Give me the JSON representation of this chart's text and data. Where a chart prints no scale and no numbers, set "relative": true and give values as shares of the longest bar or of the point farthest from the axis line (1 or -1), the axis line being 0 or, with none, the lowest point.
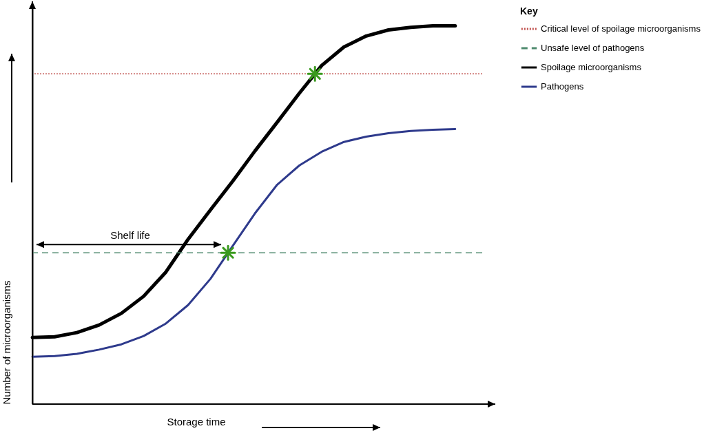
{
  "chart_data": {
    "type": "line",
    "xlabel": "Storage time",
    "ylabel": "Number of microorganisms",
    "legend_title": "Key",
    "relative": true,
    "legend": "right",
    "line_style": "solid",
    "categories": [
      null,
      null,
      null,
      null,
      null,
      null,
      null,
      null,
      null,
      null,
      null,
      null,
      null,
      null,
      null,
      null,
      null,
      null,
      null,
      null
    ],
    "series": [
      {
        "name": "Spoilage microorganisms",
        "color": "#000000",
        "values": [
          0.176,
          0.178,
          0.189,
          0.209,
          0.24,
          0.285,
          0.349,
          0.436,
          0.513,
          0.589,
          0.669,
          0.745,
          0.822,
          0.895,
          0.944,
          0.973,
          0.989,
          0.996,
          1,
          1
        ]
      },
      {
        "name": "Pathogens",
        "color": "#2e3a8c",
        "values": [
          0.125,
          0.127,
          0.133,
          0.144,
          0.158,
          0.18,
          0.213,
          0.262,
          0.331,
          0.418,
          0.504,
          0.58,
          0.631,
          0.667,
          0.693,
          0.707,
          0.716,
          0.722,
          0.725,
          0.727
        ]
      }
    ],
    "ref_lines": [
      {
        "axis": "y",
        "value": 0.873,
        "label": "Critical level of spoilage microorganisms",
        "color": "#c0504d",
        "line_style": "dotted"
      },
      {
        "axis": "y",
        "value": 0.4,
        "label": "Unsafe level of pathogens",
        "color": "#4e8a6e",
        "line_style": "dashed"
      }
    ],
    "annotations": [
      "Shelf life"
    ]
  }
}
